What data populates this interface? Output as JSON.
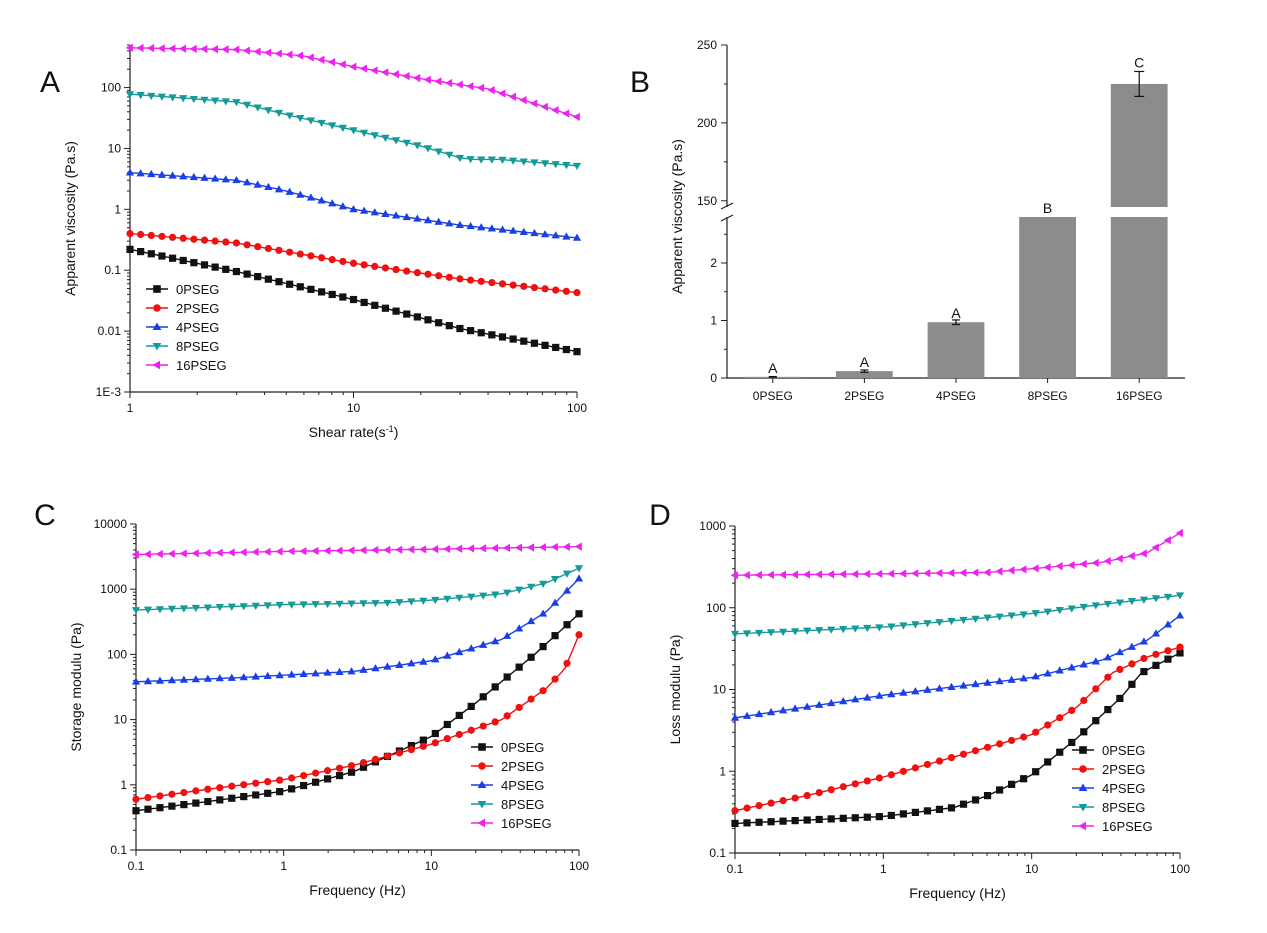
{
  "colors": {
    "0PSEG": "#111111",
    "2PSEG": "#ee1111",
    "4PSEG": "#1a3fe6",
    "8PSEG": "#159a9a",
    "16PSEG": "#ee22ee",
    "bar": "#8c8c8c"
  },
  "chart_data": [
    {
      "id": "A",
      "panel_label": "A",
      "type": "line",
      "xscale": "log",
      "yscale": "log",
      "xlim": [
        1,
        100
      ],
      "ylim": [
        0.001,
        500
      ],
      "xlabel": "Shear rate(s",
      "xlabel_sup": "-1",
      "xlabel_close": ")",
      "ylabel": "Apparent viscosity (Pa.s)",
      "xticks": [
        1,
        10,
        100
      ],
      "xtick_labels": [
        "1",
        "10",
        "100"
      ],
      "yticks": [
        0.001,
        0.01,
        0.1,
        1,
        10,
        100
      ],
      "ytick_labels": [
        "1E-3",
        "0.01",
        "0.1",
        "1",
        "10",
        "100"
      ],
      "legend_position": "bottom-left",
      "series": [
        {
          "name": "0PSEG",
          "marker": "square",
          "points": [
            [
              1,
              0.22
            ],
            [
              3,
              0.095
            ],
            [
              10,
              0.033
            ],
            [
              30,
              0.011
            ],
            [
              100,
              0.0046
            ]
          ]
        },
        {
          "name": "2PSEG",
          "marker": "circle",
          "points": [
            [
              1,
              0.4
            ],
            [
              3,
              0.28
            ],
            [
              10,
              0.13
            ],
            [
              30,
              0.072
            ],
            [
              100,
              0.043
            ]
          ]
        },
        {
          "name": "4PSEG",
          "marker": "triangle-up",
          "points": [
            [
              1,
              4
            ],
            [
              3,
              3
            ],
            [
              5,
              2.0
            ],
            [
              10,
              1.0
            ],
            [
              30,
              0.55
            ],
            [
              100,
              0.34
            ]
          ]
        },
        {
          "name": "8PSEG",
          "marker": "triangle-down",
          "points": [
            [
              1,
              78
            ],
            [
              3,
              58
            ],
            [
              5,
              36
            ],
            [
              10,
              20
            ],
            [
              20,
              11
            ],
            [
              30,
              7
            ],
            [
              35,
              6.6
            ],
            [
              45,
              6.6
            ],
            [
              100,
              5.2
            ]
          ]
        },
        {
          "name": "16PSEG",
          "marker": "triangle-left",
          "points": [
            [
              1,
              450
            ],
            [
              3,
              420
            ],
            [
              6,
              330
            ],
            [
              10,
              220
            ],
            [
              20,
              140
            ],
            [
              40,
              95
            ],
            [
              100,
              33
            ]
          ]
        }
      ]
    },
    {
      "id": "B",
      "panel_label": "B",
      "type": "bar",
      "ylabel": "Apparent viscosity (Pa.s)",
      "categories": [
        "0PSEG",
        "2PSEG",
        "4PSEG",
        "8PSEG",
        "16PSEG"
      ],
      "values": [
        0.02,
        0.12,
        0.97,
        146,
        225
      ],
      "errors": [
        0.005,
        0.02,
        0.04,
        0,
        8
      ],
      "letters": [
        "A",
        "A",
        "A",
        "B",
        "C"
      ],
      "lower_ylim": [
        0,
        2.8
      ],
      "lower_yticks": [
        0,
        1,
        2
      ],
      "lower_ytick_labels": [
        "0",
        "1",
        "2"
      ],
      "upper_ylim": [
        146,
        250
      ],
      "upper_yticks": [
        150,
        200,
        250
      ],
      "upper_ytick_labels": [
        "150",
        "200",
        "250"
      ]
    },
    {
      "id": "C",
      "panel_label": "C",
      "type": "line",
      "xscale": "log",
      "yscale": "log",
      "xlim": [
        0.1,
        100
      ],
      "ylim": [
        0.1,
        10000
      ],
      "xlabel": "Frequency (Hz)",
      "ylabel": "Storage modulu (Pa)",
      "xticks": [
        0.1,
        1,
        10,
        100
      ],
      "xtick_labels": [
        "0.1",
        "1",
        "10",
        "100"
      ],
      "yticks": [
        0.1,
        1,
        10,
        100,
        1000,
        10000
      ],
      "ytick_labels": [
        "0.1",
        "1",
        "10",
        "100",
        "1000",
        "10000"
      ],
      "legend_position": "bottom-right",
      "series": [
        {
          "name": "0PSEG",
          "marker": "square",
          "points": [
            [
              0.1,
              0.4
            ],
            [
              0.3,
              0.55
            ],
            [
              1,
              0.8
            ],
            [
              3,
              1.6
            ],
            [
              10,
              5.5
            ],
            [
              20,
              18
            ],
            [
              50,
              100
            ],
            [
              100,
              420
            ]
          ]
        },
        {
          "name": "2PSEG",
          "marker": "circle",
          "points": [
            [
              0.1,
              0.6
            ],
            [
              0.3,
              0.85
            ],
            [
              1,
              1.2
            ],
            [
              3,
              2.0
            ],
            [
              10,
              4.2
            ],
            [
              30,
              10
            ],
            [
              60,
              30
            ],
            [
              80,
              60
            ],
            [
              100,
              200
            ]
          ]
        },
        {
          "name": "4PSEG",
          "marker": "triangle-up",
          "points": [
            [
              0.1,
              38
            ],
            [
              0.5,
              44
            ],
            [
              1,
              48
            ],
            [
              3,
              55
            ],
            [
              10,
              80
            ],
            [
              30,
              170
            ],
            [
              60,
              450
            ],
            [
              100,
              1450
            ]
          ]
        },
        {
          "name": "8PSEG",
          "marker": "triangle-down",
          "points": [
            [
              0.1,
              480
            ],
            [
              1,
              580
            ],
            [
              5,
              620
            ],
            [
              10,
              680
            ],
            [
              30,
              850
            ],
            [
              60,
              1250
            ],
            [
              100,
              2100
            ]
          ]
        },
        {
          "name": "16PSEG",
          "marker": "triangle-left",
          "points": [
            [
              0.1,
              3400
            ],
            [
              1,
              3800
            ],
            [
              10,
              4100
            ],
            [
              100,
              4500
            ]
          ]
        }
      ]
    },
    {
      "id": "D",
      "panel_label": "D",
      "type": "line",
      "xscale": "log",
      "yscale": "log",
      "xlim": [
        0.1,
        100
      ],
      "ylim": [
        0.1,
        1000
      ],
      "xlabel": "Frequency (Hz)",
      "ylabel": "Loss modulu (Pa)",
      "xticks": [
        0.1,
        1,
        10,
        100
      ],
      "xtick_labels": [
        "0.1",
        "1",
        "10",
        "100"
      ],
      "yticks": [
        0.1,
        1,
        10,
        100,
        1000
      ],
      "ytick_labels": [
        "0.1",
        "1",
        "10",
        "100",
        "1000"
      ],
      "legend_position": "bottom-right",
      "series": [
        {
          "name": "0PSEG",
          "marker": "square",
          "points": [
            [
              0.1,
              0.23
            ],
            [
              1,
              0.28
            ],
            [
              3,
              0.36
            ],
            [
              5,
              0.5
            ],
            [
              10,
              0.9
            ],
            [
              20,
              2.5
            ],
            [
              40,
              8
            ],
            [
              55,
              16
            ],
            [
              100,
              28
            ]
          ]
        },
        {
          "name": "2PSEG",
          "marker": "circle",
          "points": [
            [
              0.1,
              0.33
            ],
            [
              0.3,
              0.5
            ],
            [
              1,
              0.85
            ],
            [
              3,
              1.5
            ],
            [
              10,
              2.8
            ],
            [
              20,
              6
            ],
            [
              35,
              16
            ],
            [
              60,
              25
            ],
            [
              100,
              33
            ]
          ]
        },
        {
          "name": "4PSEG",
          "marker": "triangle-up",
          "points": [
            [
              0.1,
              4.5
            ],
            [
              1,
              8.5
            ],
            [
              10,
              14
            ],
            [
              30,
              23
            ],
            [
              60,
              40
            ],
            [
              100,
              80
            ]
          ]
        },
        {
          "name": "8PSEG",
          "marker": "triangle-down",
          "points": [
            [
              0.1,
              48
            ],
            [
              1,
              58
            ],
            [
              10,
              85
            ],
            [
              30,
              110
            ],
            [
              100,
              142
            ]
          ]
        },
        {
          "name": "16PSEG",
          "marker": "triangle-left",
          "points": [
            [
              0.1,
              250
            ],
            [
              1,
              260
            ],
            [
              5,
              270
            ],
            [
              10,
              300
            ],
            [
              30,
              360
            ],
            [
              60,
              470
            ],
            [
              100,
              820
            ]
          ]
        }
      ]
    }
  ]
}
